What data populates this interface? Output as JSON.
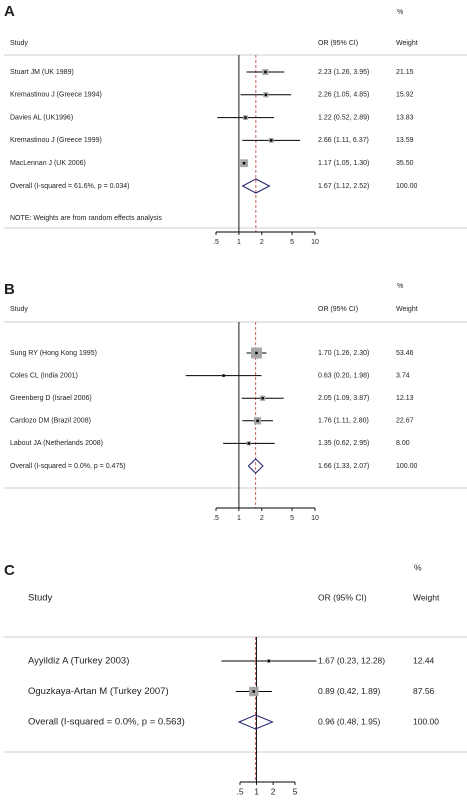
{
  "chart_data": [
    {
      "type": "forest",
      "panel": "A",
      "percent": "%",
      "study_header": "Study",
      "estimate_header": "OR (95% CI)",
      "weight_header": "Weight",
      "categories": [
        "Stuart JM (UK 1989)",
        "Kremastinou J (Greece 1994)",
        "Davies AL (UK1996)",
        "Kremastinou J (Greece 1999)",
        "MacLennan J (UK 2006)"
      ],
      "values": [
        2.23,
        2.26,
        1.22,
        2.66,
        1.17
      ],
      "lower": [
        1.26,
        1.05,
        0.52,
        1.11,
        1.05
      ],
      "upper": [
        3.95,
        4.85,
        2.89,
        6.37,
        1.3
      ],
      "value_labels": [
        "2.23 (1.26, 3.95)",
        "2.26 (1.05, 4.85)",
        "1.22 (0.52, 2.89)",
        "2.66 (1.11, 6.37)",
        "1.17 (1.05, 1.30)"
      ],
      "weights": [
        21.15,
        15.92,
        13.83,
        13.59,
        35.5
      ],
      "weight_labels": [
        "21.15",
        "15.92",
        "13.83",
        "13.59",
        "35.50"
      ],
      "overall": {
        "name": "Overall (I-squared = 61.6%, p = 0.034)",
        "value": 1.67,
        "lower": 1.12,
        "upper": 2.52,
        "value_label": "1.67 (1.12, 2.52)",
        "weight": 100,
        "weight_label": "100.00"
      },
      "note": "NOTE: Weights are from random effects analysis",
      "log_scale": true,
      "reference_line": 1,
      "xlim": [
        0.5,
        10
      ],
      "xticks": [
        {
          "value": 0.5,
          "label": ".5"
        },
        1,
        2,
        5,
        10
      ],
      "box_color": "#a6a6a6",
      "diamond_color": "#1f1f6e",
      "overall_line_color": "#c0504d"
    },
    {
      "type": "forest",
      "panel": "B",
      "percent": "%",
      "study_header": "Study",
      "estimate_header": "OR (95% CI)",
      "weight_header": "Weight",
      "categories": [
        "Sung RY (Hong Kong 1995)",
        "Coles CL (India 2001)",
        "Greenberg D (Israel 2006)",
        "Cardozo DM (Brazil 2008)",
        "Labout JA (Netherlands 2008)"
      ],
      "values": [
        1.7,
        0.63,
        2.05,
        1.76,
        1.35
      ],
      "lower": [
        1.26,
        0.2,
        1.09,
        1.11,
        0.62
      ],
      "upper": [
        2.3,
        1.98,
        3.87,
        2.8,
        2.95
      ],
      "value_labels": [
        "1.70 (1.26, 2.30)",
        "0.63 (0.20, 1.98)",
        "2.05 (1.09, 3.87)",
        "1.76 (1.11, 2.80)",
        "1.35 (0.62, 2.95)"
      ],
      "weights": [
        53.46,
        3.74,
        12.13,
        22.67,
        8.0
      ],
      "weight_labels": [
        "53.46",
        "3.74",
        "12.13",
        "22.67",
        "8.00"
      ],
      "overall": {
        "name": "Overall (I-squared = 0.0%, p = 0.475)",
        "value": 1.66,
        "lower": 1.33,
        "upper": 2.07,
        "value_label": "1.66 (1.33, 2.07)",
        "weight": 100,
        "weight_label": "100.00"
      },
      "log_scale": true,
      "reference_line": 1,
      "xlim": [
        0.5,
        10
      ],
      "xticks": [
        {
          "value": 0.5,
          "label": ".5"
        },
        1,
        2,
        5,
        10
      ],
      "box_color": "#a6a6a6",
      "diamond_color": "#1f1f6e",
      "overall_line_color": "#c0504d"
    },
    {
      "type": "forest",
      "panel": "C",
      "percent": "%",
      "study_header": "Study",
      "estimate_header": "OR (95% CI)",
      "weight_header": "Weight",
      "categories": [
        "Ayyildiz A (Turkey 2003)",
        "Oguzkaya-Artan M (Turkey 2007)"
      ],
      "values": [
        1.67,
        0.89
      ],
      "lower": [
        0.23,
        0.42
      ],
      "upper": [
        12.28,
        1.89
      ],
      "value_labels": [
        "1.67 (0.23, 12.28)",
        "0.89 (0.42, 1.89)"
      ],
      "weights": [
        12.44,
        87.56
      ],
      "weight_labels": [
        "12.44",
        "87.56"
      ],
      "overall": {
        "name": "Overall (I-squared = 0.0%, p = 0.563)",
        "value": 0.96,
        "lower": 0.48,
        "upper": 1.95,
        "value_label": "0.96 (0.48, 1.95)",
        "weight": 100,
        "weight_label": "100.00"
      },
      "log_scale": true,
      "reference_line": 1,
      "xlim": [
        0.5,
        5
      ],
      "xticks": [
        {
          "value": 0.5,
          "label": ".5"
        },
        1,
        2,
        5
      ],
      "box_color": "#a6a6a6",
      "diamond_color": "#1f1f6e",
      "overall_line_color": "#c0504d"
    }
  ]
}
